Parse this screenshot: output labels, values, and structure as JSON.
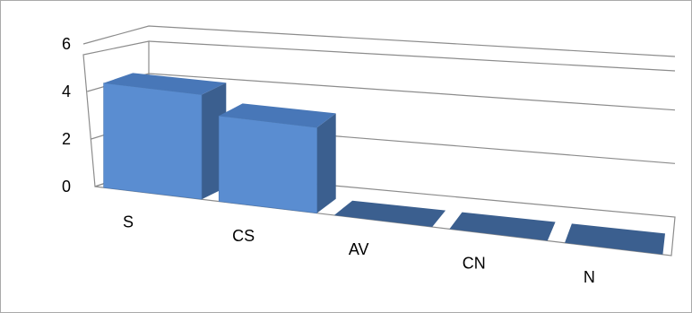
{
  "chart_data": {
    "type": "bar",
    "style": "3d-column",
    "categories": [
      "S",
      "CS",
      "AV",
      "CN",
      "N"
    ],
    "values": [
      4.4,
      3.6,
      0,
      0,
      0
    ],
    "yticks": [
      "0",
      "2",
      "4",
      "6"
    ],
    "ylim": [
      0,
      6
    ],
    "grid": true,
    "legend": "none",
    "colors": {
      "bar_front": "#5a8dd1",
      "bar_side": "#3b5f8f",
      "bar_top": "#4877b8",
      "gridline": "#8c8c8c"
    }
  }
}
